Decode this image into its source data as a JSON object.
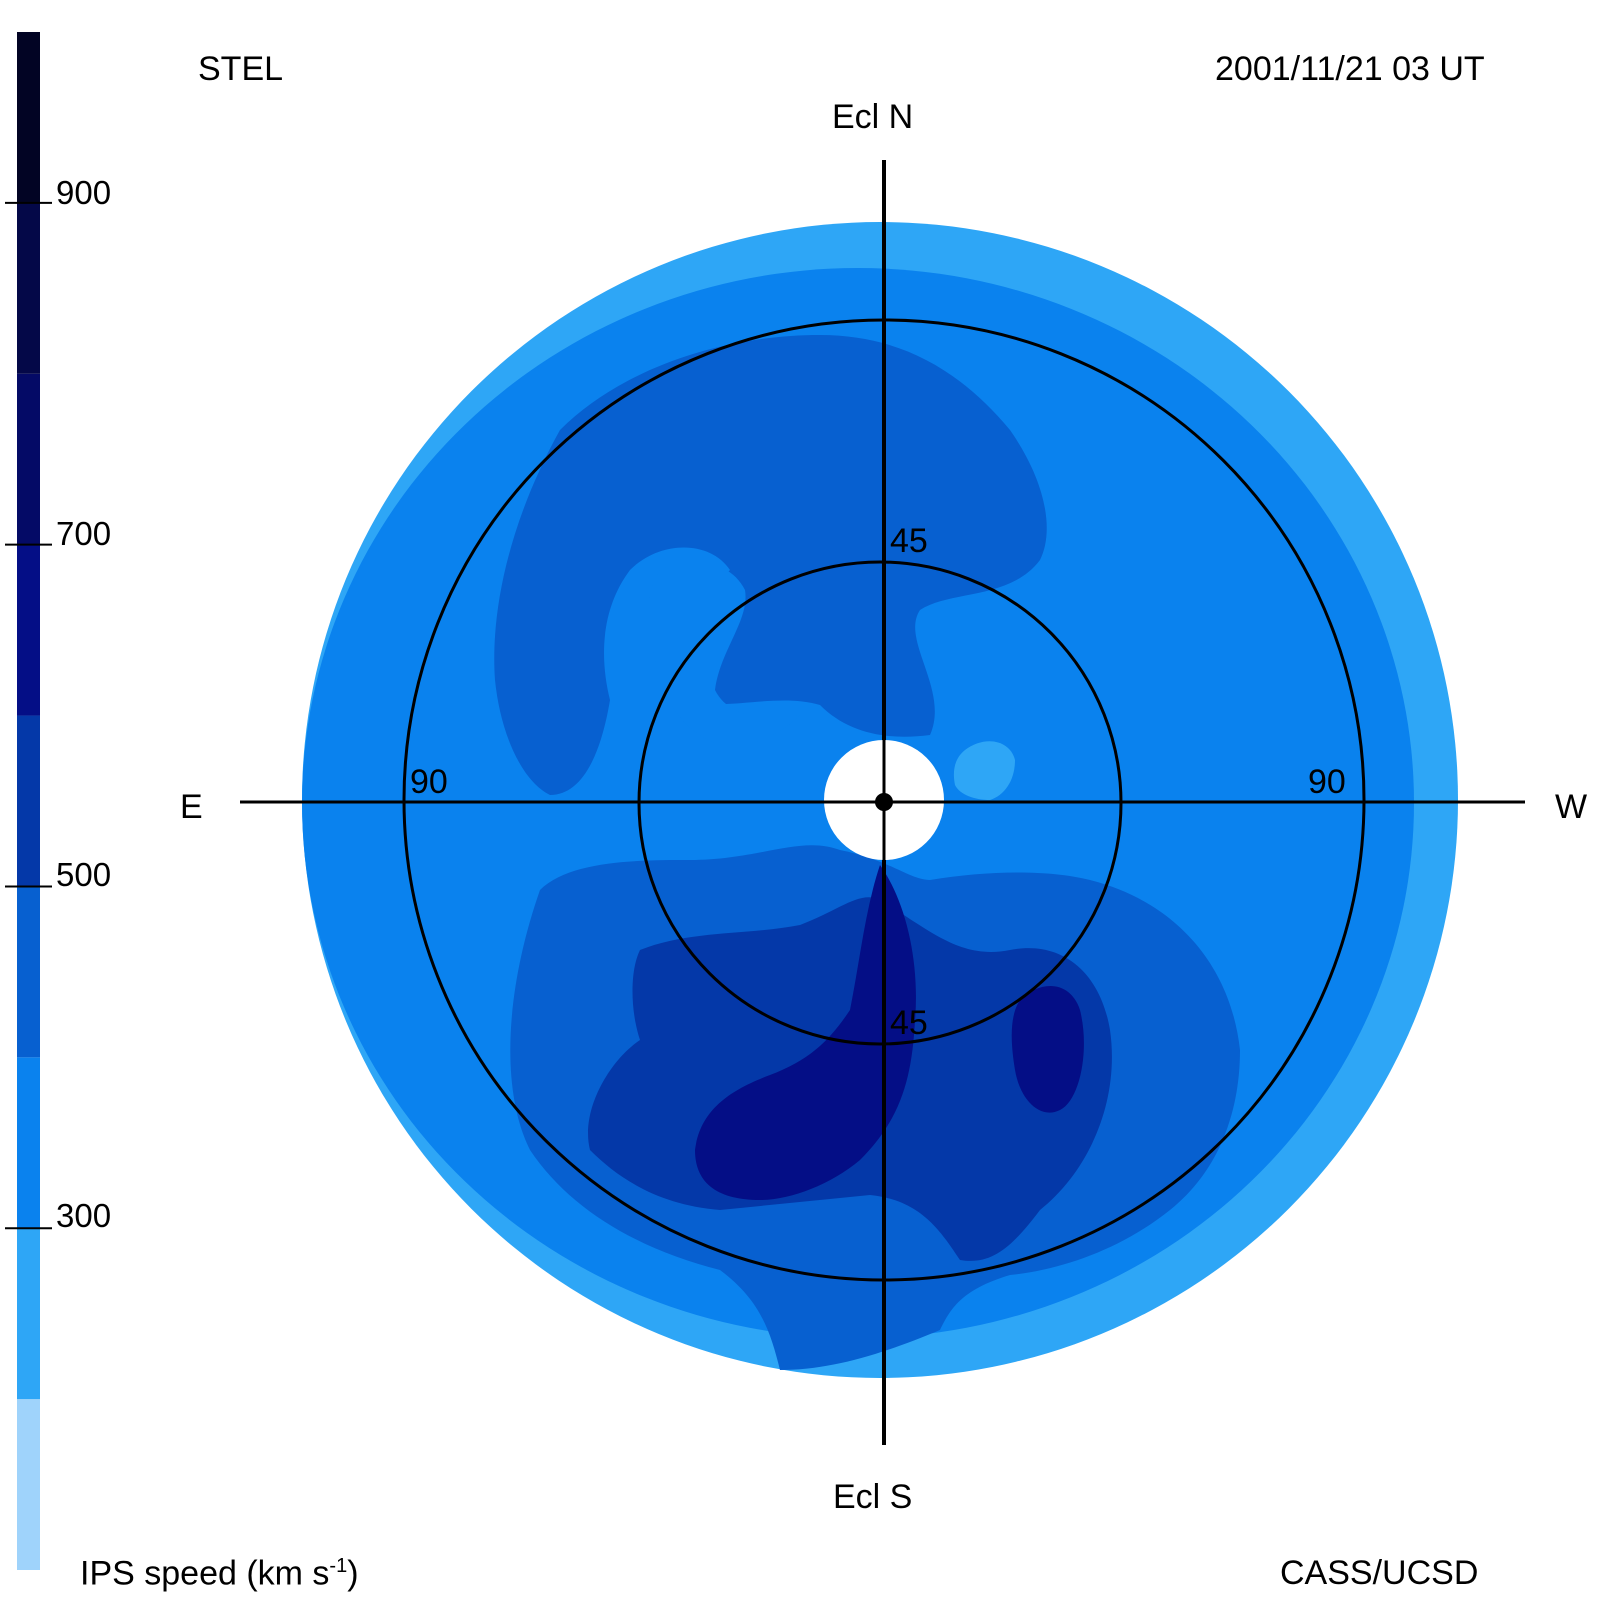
{
  "header": {
    "station": "STEL",
    "datetime": "2001/11/21 03 UT"
  },
  "footer": {
    "colorbar_title": "IPS speed (km s",
    "colorbar_title_sup": "-1",
    "colorbar_title_end": ")",
    "credit": "CASS/UCSD"
  },
  "chart_data": {
    "type": "heatmap",
    "projection": "polar sky map",
    "directions": {
      "north": "Ecl N",
      "south": "Ecl S",
      "east": "E",
      "west": "W"
    },
    "ring_labels": [
      "45",
      "45",
      "90",
      "90"
    ],
    "ring_elongations_deg": [
      45,
      90
    ],
    "colorbar": {
      "min": 100,
      "max": 1000,
      "ticks": [
        "300",
        "500",
        "700",
        "900"
      ],
      "tick_values": [
        300,
        500,
        700,
        900
      ],
      "levels": [
        {
          "from": 100,
          "to": 200,
          "color": "#9fd3fb"
        },
        {
          "from": 200,
          "to": 300,
          "color": "#2ea6f6"
        },
        {
          "from": 300,
          "to": 400,
          "color": "#0a82ee"
        },
        {
          "from": 400,
          "to": 500,
          "color": "#0760d0"
        },
        {
          "from": 500,
          "to": 600,
          "color": "#0438a8"
        },
        {
          "from": 600,
          "to": 700,
          "color": "#040e86"
        },
        {
          "from": 700,
          "to": 800,
          "color": "#040a66"
        },
        {
          "from": 800,
          "to": 900,
          "color": "#040848"
        },
        {
          "from": 900,
          "to": 1000,
          "color": "#020424"
        }
      ]
    },
    "colors": {
      "light": "#2ea6f6",
      "medium": "#0a82ee",
      "dark": "#0760d0",
      "darker": "#0438a8",
      "darkest": "#040e86"
    }
  }
}
